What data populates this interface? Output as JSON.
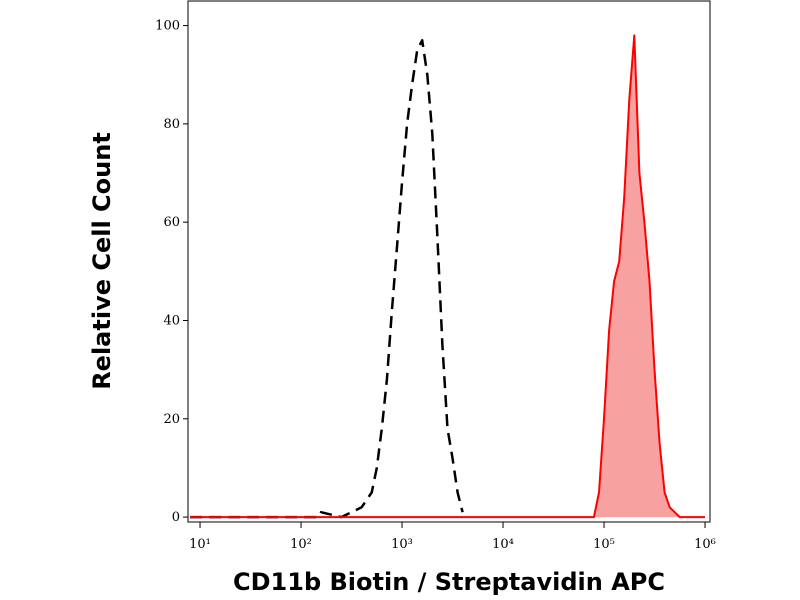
{
  "chart_data": {
    "type": "area",
    "xlabel": "CD11b Biotin / Streptavidin APC",
    "ylabel": "Relative Cell Count",
    "xscale": "log",
    "xlim": [
      7.6,
      1120000
    ],
    "ylim": [
      -1,
      105
    ],
    "xticks": [
      {
        "value": 10,
        "label": "10¹"
      },
      {
        "value": 100,
        "label": "10²"
      },
      {
        "value": 1000,
        "label": "10³"
      },
      {
        "value": 10000,
        "label": "10⁴"
      },
      {
        "value": 100000,
        "label": "10⁵"
      },
      {
        "value": 1000000,
        "label": "10⁶"
      }
    ],
    "yticks": [
      0,
      20,
      40,
      60,
      80,
      100
    ],
    "series": [
      {
        "color": "#000000",
        "dashed": true,
        "filled": false,
        "x": [
          8,
          150,
          158,
          251,
          316,
          398,
          501,
          562,
          631,
          708,
          794,
          891,
          1000,
          1122,
          1259,
          1413,
          1585,
          1778,
          1995,
          2239,
          2512,
          2818,
          3162,
          3548,
          3981
        ],
        "values": [
          0,
          0,
          1,
          0,
          1,
          2,
          5,
          10,
          18,
          28,
          42,
          55,
          68,
          80,
          88,
          95,
          97,
          90,
          78,
          57,
          35,
          18,
          12,
          5,
          1
        ]
      },
      {
        "color": "#ff0000",
        "fill": "#f7a1a1",
        "dashed": false,
        "filled": true,
        "x": [
          8,
          79433,
          89125,
          100000,
          112202,
          125893,
          141254,
          158489,
          177828,
          199526,
          223872,
          251189,
          281838,
          316228,
          354813,
          398107,
          446684,
          501187,
          562341,
          1000000
        ],
        "values": [
          0,
          0,
          5,
          20,
          38,
          48,
          52,
          65,
          85,
          98,
          70,
          60,
          48,
          30,
          15,
          5,
          2,
          1,
          0,
          0
        ]
      }
    ]
  }
}
